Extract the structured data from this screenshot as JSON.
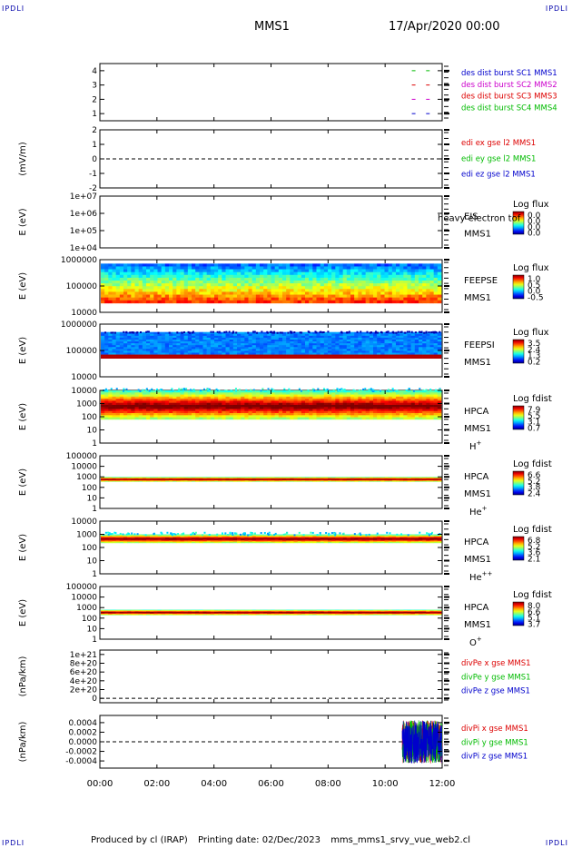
{
  "corner_label": "IPDLI",
  "header": {
    "spacecraft": "MMS1",
    "date": "17/Apr/2020 00:00"
  },
  "footer": {
    "producer": "Produced by cl (IRAP)",
    "printing": "Printing date: 02/Dec/2023",
    "file": "mms_mms1_srvy_vue_web2.cl"
  },
  "colors": {
    "c_blue": "#0000cc",
    "c_magenta": "#cc00cc",
    "c_red": "#dd0000",
    "c_green": "#00bb00"
  },
  "chart_data": [
    {
      "type": "scatter",
      "id": "burst",
      "ylabel": "",
      "ylim": [
        0.5,
        4.5
      ],
      "yticks": [
        "1",
        "2",
        "3",
        "4"
      ],
      "legend": [
        {
          "name": "des dist burst SC1 MMS1",
          "color": "#0000cc"
        },
        {
          "name": "des dist burst SC2 MMS2",
          "color": "#cc00cc"
        },
        {
          "name": "des dist burst SC3 MMS3",
          "color": "#dd0000"
        },
        {
          "name": "des dist burst SC4 MMS4",
          "color": "#00bb00"
        }
      ],
      "series": [
        {
          "name": "SC1",
          "y": 1,
          "x": [
            11.0,
            11.5
          ]
        },
        {
          "name": "SC2",
          "y": 2,
          "x": [
            11.0,
            11.5
          ]
        },
        {
          "name": "SC3",
          "y": 3,
          "x": [
            11.0,
            11.5
          ]
        },
        {
          "name": "SC4",
          "y": 4,
          "x": [
            11.0,
            11.5
          ]
        }
      ]
    },
    {
      "type": "line",
      "id": "edi",
      "ylabel": "(mV/m)",
      "ylim": [
        -2,
        2
      ],
      "yticks": [
        "-2",
        "-1",
        "0",
        "1",
        "2"
      ],
      "legend": [
        {
          "name": "edi ex gse l2 MMS1",
          "color": "#dd0000"
        },
        {
          "name": "edi ey gse l2 MMS1",
          "color": "#00bb00"
        },
        {
          "name": "edi ez gse l2 MMS1",
          "color": "#0000cc"
        }
      ]
    },
    {
      "type": "heatmap",
      "id": "eis",
      "ylabel": "E (eV)",
      "yscale": "log",
      "ylim": [
        10000,
        10000000
      ],
      "yticks": [
        "1e+04",
        "1e+05",
        "1e+06",
        "1e+07"
      ],
      "instrument": "EIS",
      "spacecraft": "MMS1",
      "extra_label": "heavy electron tof",
      "cbar_title": "Log flux",
      "cbar_ticks": [
        "0.0",
        "0.0",
        "0.0",
        "0.0"
      ]
    },
    {
      "type": "heatmap",
      "id": "feepse",
      "ylabel": "E (eV)",
      "yscale": "log",
      "ylim": [
        10000,
        1000000
      ],
      "yticks": [
        "10000",
        "100000",
        "1000000"
      ],
      "instrument": "FEEPSE",
      "spacecraft": "MMS1",
      "cbar_title": "Log flux",
      "cbar_ticks": [
        "1.0",
        "0.5",
        "0.0",
        "-0.5"
      ],
      "band": [
        {
          "log_lo": 4.35,
          "log_hi": 5.85
        }
      ]
    },
    {
      "type": "heatmap",
      "id": "feepsi",
      "ylabel": "E (eV)",
      "yscale": "log",
      "ylim": [
        10000,
        1000000
      ],
      "yticks": [
        "10000",
        "100000",
        "1000000"
      ],
      "instrument": "FEEPSI",
      "spacecraft": "MMS1",
      "cbar_title": "Log flux",
      "cbar_ticks": [
        "3.5",
        "2.4",
        "1.3",
        "0.2"
      ],
      "band": [
        {
          "log_lo": 4.7,
          "log_hi": 5.7
        }
      ]
    },
    {
      "type": "heatmap",
      "id": "hpca_h",
      "ylabel": "E (eV)",
      "yscale": "log",
      "ylim": [
        1,
        10000
      ],
      "yticks": [
        "1",
        "10",
        "100",
        "1000",
        "10000"
      ],
      "instrument": "HPCA",
      "spacecraft": "MMS1",
      "species": "H",
      "species_sup": "+",
      "cbar_title": "Log fdist",
      "cbar_ticks": [
        "7.9",
        "5.5",
        "3.1",
        "0.7"
      ],
      "band": [
        {
          "log_lo": 1.8,
          "log_hi": 4.0
        }
      ]
    },
    {
      "type": "heatmap",
      "id": "hpca_he1",
      "ylabel": "E (eV)",
      "yscale": "log",
      "ylim": [
        1,
        100000
      ],
      "yticks": [
        "1",
        "10",
        "100",
        "1000",
        "10000",
        "100000"
      ],
      "instrument": "HPCA",
      "spacecraft": "MMS1",
      "species": "He",
      "species_sup": "+",
      "cbar_title": "Log fdist",
      "cbar_ticks": [
        "6.6",
        "5.2",
        "3.8",
        "2.4"
      ],
      "band": [
        {
          "log_lo": 2.55,
          "log_hi": 3.0
        }
      ]
    },
    {
      "type": "heatmap",
      "id": "hpca_he2",
      "ylabel": "E (eV)",
      "yscale": "log",
      "ylim": [
        1,
        10000
      ],
      "yticks": [
        "1",
        "10",
        "100",
        "1000",
        "10000"
      ],
      "instrument": "HPCA",
      "spacecraft": "MMS1",
      "species": "He",
      "species_sup": "++",
      "cbar_title": "Log fdist",
      "cbar_ticks": [
        "6.8",
        "5.2",
        "3.6",
        "2.1"
      ],
      "band": [
        {
          "log_lo": 2.35,
          "log_hi": 3.0
        }
      ]
    },
    {
      "type": "heatmap",
      "id": "hpca_o",
      "ylabel": "E (eV)",
      "yscale": "log",
      "ylim": [
        1,
        100000
      ],
      "yticks": [
        "1",
        "10",
        "100",
        "1000",
        "10000",
        "100000"
      ],
      "instrument": "HPCA",
      "spacecraft": "MMS1",
      "species": "O",
      "species_sup": "+",
      "cbar_title": "Log fdist",
      "cbar_ticks": [
        "8.0",
        "6.6",
        "5.1",
        "3.7"
      ],
      "band": [
        {
          "log_lo": 2.3,
          "log_hi": 2.8
        }
      ]
    },
    {
      "type": "line",
      "id": "divpe",
      "ylabel": "(nPa/km)",
      "ylim": [
        -1e+20,
        1.1e+21
      ],
      "yticks_vals": [
        0,
        2e+20,
        4e+20,
        6e+20,
        8e+20,
        1e+21
      ],
      "yticks": [
        "0",
        "2e+20",
        "4e+20",
        "6e+20",
        "8e+20",
        "1e+21"
      ],
      "legend": [
        {
          "name": "divPe x gse MMS1",
          "color": "#dd0000"
        },
        {
          "name": "divPe y gse MMS1",
          "color": "#00bb00"
        },
        {
          "name": "divPe z gse MMS1",
          "color": "#0000cc"
        }
      ]
    },
    {
      "type": "line",
      "id": "divpi",
      "ylabel": "(nPa/km)",
      "ylim": [
        -0.00055,
        0.00055
      ],
      "yticks_vals": [
        -0.0004,
        -0.0002,
        0,
        0.0002,
        0.0004
      ],
      "yticks": [
        "-0.0004",
        "-0.0002",
        "0.0000",
        "0.0002",
        "0.0004"
      ],
      "noise_range_hours": [
        10.6,
        12.0
      ],
      "noise_amplitude": 0.00045,
      "legend": [
        {
          "name": "divPi x gse MMS1",
          "color": "#dd0000"
        },
        {
          "name": "divPi y gse MMS1",
          "color": "#00bb00"
        },
        {
          "name": "divPi z gse MMS1",
          "color": "#0000cc"
        }
      ]
    }
  ],
  "xaxis": {
    "xlim_hours": [
      0,
      12
    ],
    "ticks": [
      "00:00",
      "02:00",
      "04:00",
      "06:00",
      "08:00",
      "10:00",
      "12:00"
    ]
  }
}
